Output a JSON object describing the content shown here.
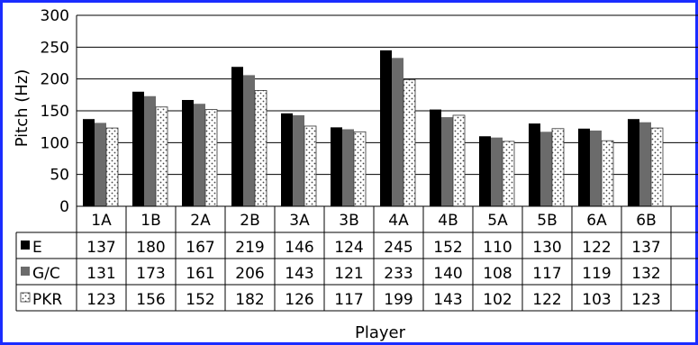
{
  "chart_data": {
    "type": "bar",
    "xlabel": "Player",
    "ylabel": "Pitch (Hz)",
    "ylim": [
      0,
      300
    ],
    "yticks": [
      "300",
      "250",
      "200",
      "150",
      "100",
      "50",
      "0"
    ],
    "grid": true,
    "legend": "data-table",
    "categories": [
      "1A",
      "1B",
      "2A",
      "2B",
      "3A",
      "3B",
      "4A",
      "4B",
      "5A",
      "5B",
      "6A",
      "6B"
    ],
    "series": [
      {
        "name": "E",
        "color": "#000000",
        "pattern": "solid-black",
        "values": [
          137,
          180,
          167,
          219,
          146,
          124,
          245,
          152,
          110,
          130,
          122,
          137
        ]
      },
      {
        "name": "G/C",
        "color": "#6b6b6b",
        "pattern": "solid-gray",
        "values": [
          131,
          173,
          161,
          206,
          143,
          121,
          233,
          140,
          108,
          117,
          119,
          132
        ]
      },
      {
        "name": "PKR",
        "color": "#ffffff",
        "pattern": "dotted",
        "values": [
          123,
          156,
          152,
          182,
          126,
          117,
          199,
          143,
          102,
          122,
          103,
          123
        ]
      }
    ]
  }
}
